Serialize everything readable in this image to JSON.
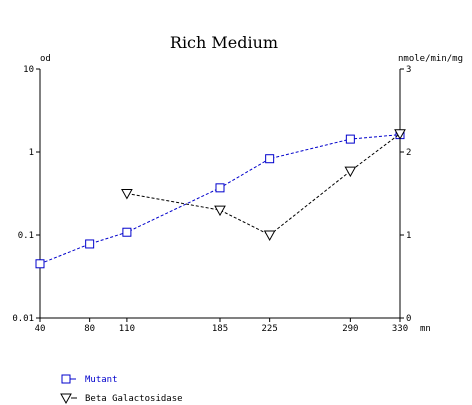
{
  "chart_data": {
    "type": "line",
    "title": "Rich Medium",
    "x_unit": "mn",
    "x": [
      40,
      80,
      110,
      185,
      225,
      290,
      330
    ],
    "x_ticks": [
      "40",
      "80",
      "110",
      "185",
      "225",
      "290",
      "330"
    ],
    "xlim": [
      40,
      330
    ],
    "left_axis": {
      "label": "od",
      "scale": "log",
      "range": [
        0.01,
        10
      ],
      "ticks": [
        "0.01",
        "0.1",
        "1",
        "10"
      ]
    },
    "right_axis": {
      "label": "nmole/min/mg",
      "scale": "linear",
      "range": [
        0,
        3
      ],
      "ticks": [
        "0",
        "1",
        "2",
        "3"
      ]
    },
    "grid": false,
    "legend_position": "bottom-left",
    "series": [
      {
        "name": "Mutant",
        "axis": "left",
        "marker": "square",
        "line_style": "dashed",
        "color": "#0000cc",
        "points": [
          [
            40,
            0.045
          ],
          [
            80,
            0.078
          ],
          [
            110,
            0.108
          ],
          [
            185,
            0.37
          ],
          [
            225,
            0.83
          ],
          [
            290,
            1.43
          ],
          [
            330,
            1.62
          ]
        ]
      },
      {
        "name": "Beta Galactosidase",
        "axis": "right",
        "marker": "triangle-down",
        "line_style": "dashed",
        "color": "#000000",
        "points": [
          [
            110,
            1.5
          ],
          [
            185,
            1.3
          ],
          [
            225,
            1.0
          ],
          [
            290,
            1.77
          ],
          [
            330,
            2.22
          ]
        ]
      }
    ]
  }
}
